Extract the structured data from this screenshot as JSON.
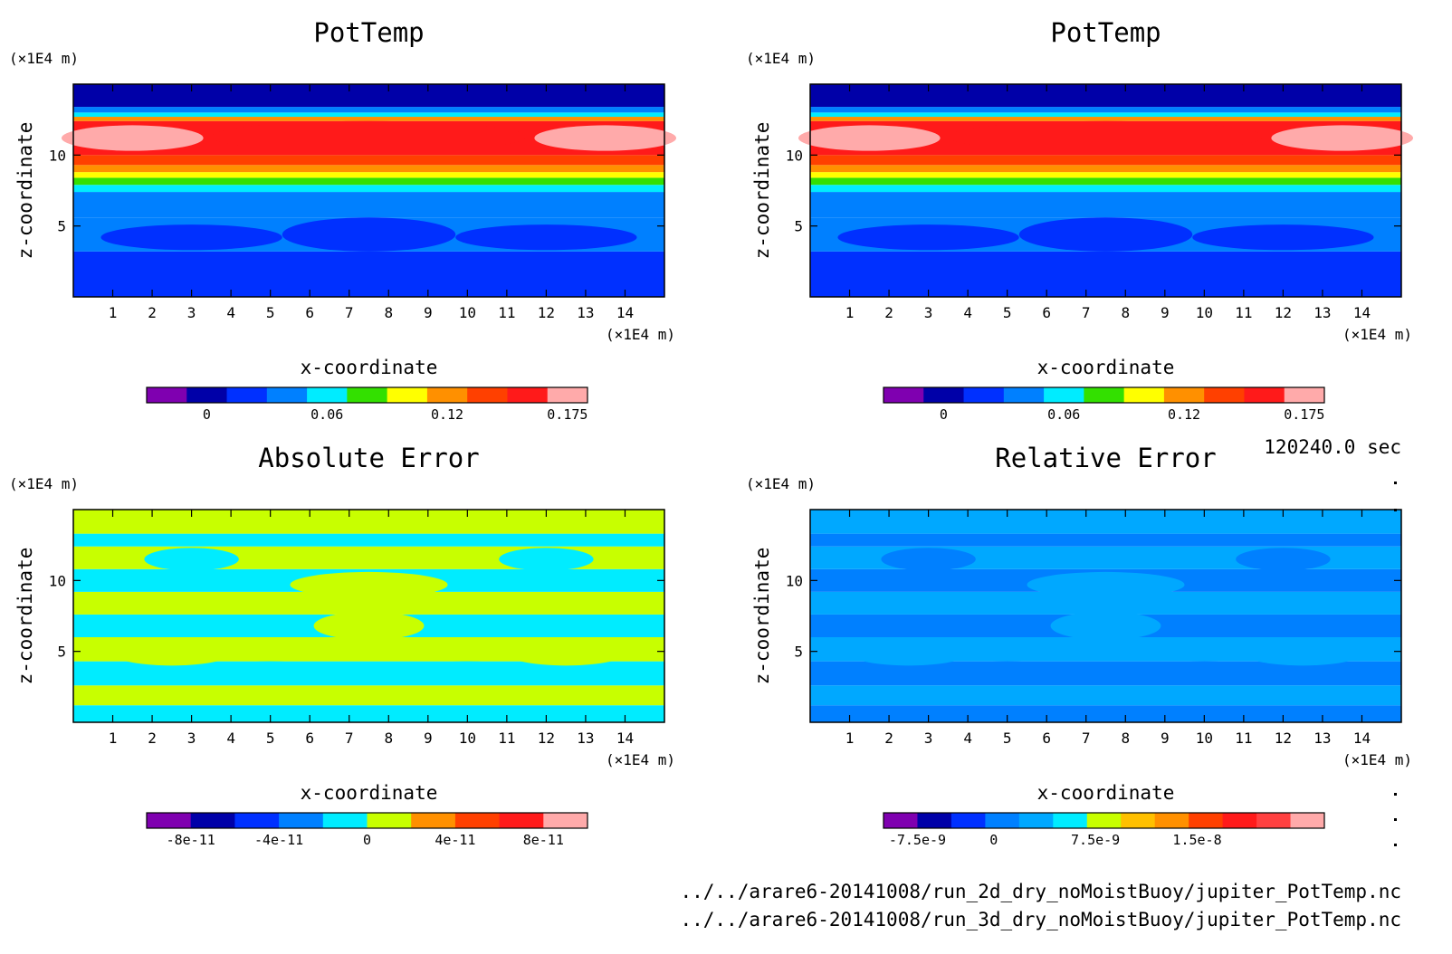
{
  "figure": {
    "time_label": "120240.0 sec",
    "files": [
      "../../arare6-20141008/run_2d_dry_noMoistBuoy/jupiter_PotTemp.nc",
      "../../arare6-20141008/run_3d_dry_noMoistBuoy/jupiter_PotTemp.nc"
    ]
  },
  "colors": {
    "purple": "#7f00b0",
    "navy": "#0000a8",
    "blue": "#0030ff",
    "azure": "#0080ff",
    "skyblue": "#00a8ff",
    "cyan": "#00ecff",
    "green": "#33e000",
    "yellowgreen": "#c8ff00",
    "yellow": "#ffff00",
    "gold": "#ffc000",
    "orange": "#ff9000",
    "redorange": "#ff4000",
    "red": "#ff1a1a",
    "coral": "#ff4040",
    "pink": "#ffaaaa"
  },
  "chart_data": [
    {
      "type": "heatmap",
      "title": "PotTemp",
      "xlabel": "x-coordinate",
      "ylabel": "z-coordinate",
      "x_unit": "(×1E4 m)",
      "y_unit": "(×1E4 m)",
      "xlim": [
        0,
        15
      ],
      "ylim": [
        0,
        15
      ],
      "x_ticks": [
        1,
        2,
        3,
        4,
        5,
        6,
        7,
        8,
        9,
        10,
        11,
        12,
        13,
        14
      ],
      "y_ticks": [
        5,
        10
      ],
      "colorbar": {
        "colors": [
          "#7f00b0",
          "#0000a8",
          "#0030ff",
          "#0080ff",
          "#00ecff",
          "#33e000",
          "#ffff00",
          "#ff9000",
          "#ff4000",
          "#ff1a1a",
          "#ffaaaa"
        ],
        "labels": [
          "0",
          "0.06",
          "0.12",
          "0.175"
        ],
        "label_positions": [
          1.5,
          4.5,
          7.5,
          10.5
        ]
      },
      "bands": [
        {
          "z": [
            0,
            3.2
          ],
          "color": "#0030ff"
        },
        {
          "z": [
            3.2,
            5.6
          ],
          "color": "#0080ff"
        },
        {
          "z": [
            5.6,
            7.4
          ],
          "color": "#0080ff"
        },
        {
          "z": [
            7.4,
            7.9
          ],
          "color": "#00ecff"
        },
        {
          "z": [
            7.9,
            8.4
          ],
          "color": "#33e000"
        },
        {
          "z": [
            8.4,
            8.8
          ],
          "color": "#ffff00"
        },
        {
          "z": [
            8.8,
            9.3
          ],
          "color": "#ff9000"
        },
        {
          "z": [
            9.3,
            10.0
          ],
          "color": "#ff4000"
        },
        {
          "z": [
            10.0,
            12.4
          ],
          "color": "#ff1a1a"
        },
        {
          "z": [
            12.4,
            12.7
          ],
          "color": "#ff9000"
        },
        {
          "z": [
            12.7,
            13.0
          ],
          "color": "#00ecff"
        },
        {
          "z": [
            13.0,
            13.4
          ],
          "color": "#0080ff"
        },
        {
          "z": [
            13.4,
            15.0
          ],
          "color": "#0000a8"
        }
      ]
    },
    {
      "type": "heatmap",
      "title": "PotTemp",
      "xlabel": "x-coordinate",
      "ylabel": "z-coordinate",
      "x_unit": "(×1E4 m)",
      "y_unit": "(×1E4 m)",
      "xlim": [
        0,
        15
      ],
      "ylim": [
        0,
        15
      ],
      "x_ticks": [
        1,
        2,
        3,
        4,
        5,
        6,
        7,
        8,
        9,
        10,
        11,
        12,
        13,
        14
      ],
      "y_ticks": [
        5,
        10
      ],
      "colorbar": {
        "colors": [
          "#7f00b0",
          "#0000a8",
          "#0030ff",
          "#0080ff",
          "#00ecff",
          "#33e000",
          "#ffff00",
          "#ff9000",
          "#ff4000",
          "#ff1a1a",
          "#ffaaaa"
        ],
        "labels": [
          "0",
          "0.06",
          "0.12",
          "0.175"
        ],
        "label_positions": [
          1.5,
          4.5,
          7.5,
          10.5
        ]
      },
      "bands": [
        {
          "z": [
            0,
            3.2
          ],
          "color": "#0030ff"
        },
        {
          "z": [
            3.2,
            5.6
          ],
          "color": "#0080ff"
        },
        {
          "z": [
            5.6,
            7.4
          ],
          "color": "#0080ff"
        },
        {
          "z": [
            7.4,
            7.9
          ],
          "color": "#00ecff"
        },
        {
          "z": [
            7.9,
            8.4
          ],
          "color": "#33e000"
        },
        {
          "z": [
            8.4,
            8.8
          ],
          "color": "#ffff00"
        },
        {
          "z": [
            8.8,
            9.3
          ],
          "color": "#ff9000"
        },
        {
          "z": [
            9.3,
            10.0
          ],
          "color": "#ff4000"
        },
        {
          "z": [
            10.0,
            12.4
          ],
          "color": "#ff1a1a"
        },
        {
          "z": [
            12.4,
            12.7
          ],
          "color": "#ff9000"
        },
        {
          "z": [
            12.7,
            13.0
          ],
          "color": "#00ecff"
        },
        {
          "z": [
            13.0,
            13.4
          ],
          "color": "#0080ff"
        },
        {
          "z": [
            13.4,
            15.0
          ],
          "color": "#0000a8"
        }
      ]
    },
    {
      "type": "heatmap",
      "title": "Absolute Error",
      "xlabel": "x-coordinate",
      "ylabel": "z-coordinate",
      "x_unit": "(×1E4 m)",
      "y_unit": "(×1E4 m)",
      "xlim": [
        0,
        15
      ],
      "ylim": [
        0,
        15
      ],
      "x_ticks": [
        1,
        2,
        3,
        4,
        5,
        6,
        7,
        8,
        9,
        10,
        11,
        12,
        13,
        14
      ],
      "y_ticks": [
        5,
        10
      ],
      "colorbar": {
        "colors": [
          "#7f00b0",
          "#0000a8",
          "#0030ff",
          "#0080ff",
          "#00ecff",
          "#c8ff00",
          "#ff9000",
          "#ff4000",
          "#ff1a1a",
          "#ffaaaa"
        ],
        "labels": [
          "-8e-11",
          "-4e-11",
          "0",
          "4e-11",
          "8e-11"
        ],
        "label_positions": [
          1,
          3,
          5,
          7,
          9
        ]
      },
      "bands": [
        {
          "z": [
            0,
            1.2
          ],
          "color": "#00ecff"
        },
        {
          "z": [
            1.2,
            2.6
          ],
          "color": "#c8ff00"
        },
        {
          "z": [
            2.6,
            4.3
          ],
          "color": "#00ecff"
        },
        {
          "z": [
            4.3,
            6.0
          ],
          "color": "#c8ff00"
        },
        {
          "z": [
            6.0,
            7.6
          ],
          "color": "#00ecff"
        },
        {
          "z": [
            7.6,
            9.2
          ],
          "color": "#c8ff00"
        },
        {
          "z": [
            9.2,
            10.8
          ],
          "color": "#00ecff"
        },
        {
          "z": [
            10.8,
            12.4
          ],
          "color": "#c8ff00"
        },
        {
          "z": [
            12.4,
            13.3
          ],
          "color": "#00ecff"
        },
        {
          "z": [
            13.3,
            15.0
          ],
          "color": "#c8ff00"
        }
      ]
    },
    {
      "type": "heatmap",
      "title": "Relative Error",
      "xlabel": "x-coordinate",
      "ylabel": "z-coordinate",
      "x_unit": "(×1E4 m)",
      "y_unit": "(×1E4 m)",
      "xlim": [
        0,
        15
      ],
      "ylim": [
        0,
        15
      ],
      "x_ticks": [
        1,
        2,
        3,
        4,
        5,
        6,
        7,
        8,
        9,
        10,
        11,
        12,
        13,
        14
      ],
      "y_ticks": [
        5,
        10
      ],
      "colorbar": {
        "colors": [
          "#7f00b0",
          "#0000a8",
          "#0030ff",
          "#0080ff",
          "#00a8ff",
          "#00ecff",
          "#c8ff00",
          "#ffc000",
          "#ff9000",
          "#ff4000",
          "#ff1a1a",
          "#ff4040",
          "#ffaaaa"
        ],
        "labels": [
          "-7.5e-9",
          "0",
          "7.5e-9",
          "1.5e-8"
        ],
        "label_positions": [
          1,
          3.25,
          6.25,
          9.25
        ]
      },
      "bands": [
        {
          "z": [
            0,
            1.2
          ],
          "color": "#0080ff"
        },
        {
          "z": [
            1.2,
            2.6
          ],
          "color": "#00a8ff"
        },
        {
          "z": [
            2.6,
            4.3
          ],
          "color": "#0080ff"
        },
        {
          "z": [
            4.3,
            6.0
          ],
          "color": "#00a8ff"
        },
        {
          "z": [
            6.0,
            7.6
          ],
          "color": "#0080ff"
        },
        {
          "z": [
            7.6,
            9.2
          ],
          "color": "#00a8ff"
        },
        {
          "z": [
            9.2,
            10.8
          ],
          "color": "#0080ff"
        },
        {
          "z": [
            10.8,
            12.4
          ],
          "color": "#00a8ff"
        },
        {
          "z": [
            12.4,
            13.3
          ],
          "color": "#0080ff"
        },
        {
          "z": [
            13.3,
            15.0
          ],
          "color": "#00a8ff"
        }
      ]
    }
  ]
}
